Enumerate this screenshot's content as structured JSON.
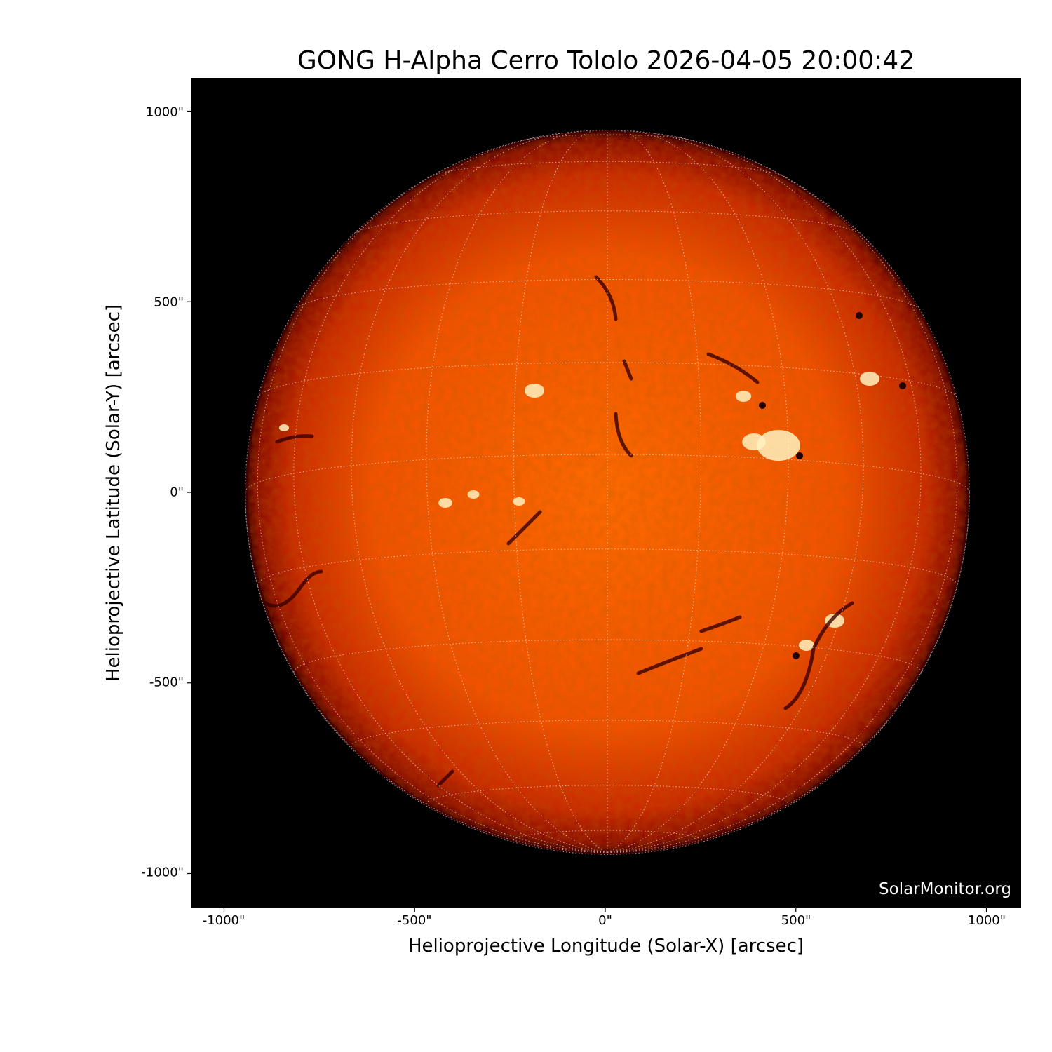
{
  "chart_data": {
    "type": "heatmap",
    "title": "GONG H-Alpha Cerro Tololo 2026-04-05 20:00:42",
    "xlabel": "Helioprojective Longitude (Solar-X) [arcsec]",
    "ylabel": "Helioprojective Latitude (Solar-Y) [arcsec]",
    "xlim": [
      -1090,
      1090
    ],
    "ylim": [
      -1090,
      1090
    ],
    "x_ticks": [
      -1000,
      -500,
      0,
      500,
      1000
    ],
    "y_ticks": [
      1000,
      500,
      0,
      -500,
      -1000
    ],
    "x_tick_labels": [
      "-1000\"",
      "-500\"",
      "0\"",
      "500\"",
      "1000\""
    ],
    "y_tick_labels": [
      "1000\"",
      "500\"",
      "0\"",
      "-500\"",
      "-1000\""
    ],
    "solar_radius_arcsec": 950,
    "grid": "heliographic, dotted white, 15° spacing",
    "colormap": "gong H-alpha (black-red-orange-white)",
    "colors": {
      "background": "#000000",
      "disk_center": "#ff6a00",
      "limb": "#7a0800",
      "grid": "#ffffff"
    }
  },
  "watermark": "SolarMonitor.org"
}
